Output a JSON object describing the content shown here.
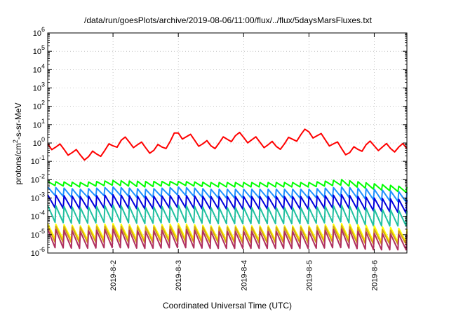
{
  "chart_data": {
    "type": "line",
    "title": "/data/run/goesPlots/archive/2019-08-06/11:00/flux/../flux/5daysMarsFluxes.txt",
    "xlabel": "Coordinated Universal Time (UTC)",
    "ylabel_prefix": "protons/cm",
    "ylabel_sup": "2",
    "ylabel_suffix": "-s-sr-MeV",
    "y_scale": "log",
    "ylim": [
      1e-06,
      1000000.0
    ],
    "y_ticks": [
      {
        "base": "10",
        "exp": "-6",
        "value": 1e-06
      },
      {
        "base": "10",
        "exp": "-5",
        "value": 1e-05
      },
      {
        "base": "10",
        "exp": "-4",
        "value": 0.0001
      },
      {
        "base": "10",
        "exp": "-3",
        "value": 0.001
      },
      {
        "base": "10",
        "exp": "-2",
        "value": 0.01
      },
      {
        "base": "10",
        "exp": "-1",
        "value": 0.1
      },
      {
        "base": "10",
        "exp": "0",
        "value": 1
      },
      {
        "base": "10",
        "exp": "1",
        "value": 10
      },
      {
        "base": "10",
        "exp": "2",
        "value": 100
      },
      {
        "base": "10",
        "exp": "3",
        "value": 1000
      },
      {
        "base": "10",
        "exp": "4",
        "value": 10000
      },
      {
        "base": "10",
        "exp": "5",
        "value": 100000
      },
      {
        "base": "10",
        "exp": "6",
        "value": 1000000
      }
    ],
    "x_range": [
      "2019-08-01T00:00",
      "2019-08-06T12:00"
    ],
    "x_ticks": [
      "2019-8-2",
      "2019-8-3",
      "2019-8-4",
      "2019-8-5",
      "2019-8-6"
    ],
    "x_tick_values": [
      "2019-08-02T00:00",
      "2019-08-03T00:00",
      "2019-08-04T00:00",
      "2019-08-05T00:00",
      "2019-08-06T00:00"
    ],
    "grid": true,
    "legend": "none",
    "series": [
      {
        "color": "#ff0000",
        "x": [
          "2019-08-01T00:00",
          "2019-08-01T03:00",
          "2019-08-01T06:00",
          "2019-08-01T09:00",
          "2019-08-01T12:00",
          "2019-08-01T15:00",
          "2019-08-01T18:00",
          "2019-08-01T21:00",
          "2019-08-02T00:00",
          "2019-08-02T03:00",
          "2019-08-02T06:00",
          "2019-08-02T09:00",
          "2019-08-02T12:00",
          "2019-08-02T15:00",
          "2019-08-02T18:00",
          "2019-08-02T21:00",
          "2019-08-03T00:00",
          "2019-08-03T03:00",
          "2019-08-03T06:00",
          "2019-08-03T09:00",
          "2019-08-03T12:00",
          "2019-08-03T15:00",
          "2019-08-03T18:00",
          "2019-08-03T21:00",
          "2019-08-04T00:00",
          "2019-08-04T03:00",
          "2019-08-04T06:00",
          "2019-08-04T09:00",
          "2019-08-04T12:00",
          "2019-08-04T15:00",
          "2019-08-04T18:00",
          "2019-08-04T21:00",
          "2019-08-05T00:00",
          "2019-08-05T03:00",
          "2019-08-05T06:00",
          "2019-08-05T09:00",
          "2019-08-05T12:00",
          "2019-08-05T15:00",
          "2019-08-05T18:00",
          "2019-08-05T21:00",
          "2019-08-06T00:00",
          "2019-08-06T03:00",
          "2019-08-06T06:00",
          "2019-08-06T09:00",
          "2019-08-06T12:00"
        ],
        "y": [
          0.9,
          0.6,
          0.45,
          0.3,
          0.22,
          0.18,
          0.25,
          0.4,
          0.7,
          1.4,
          1.1,
          0.8,
          0.55,
          0.4,
          0.6,
          1.2,
          3.5,
          2.2,
          1.4,
          0.9,
          0.7,
          1.0,
          1.6,
          2.5,
          2.0,
          1.5,
          1.1,
          0.8,
          0.65,
          0.9,
          1.6,
          2.8,
          4.0,
          2.5,
          1.5,
          0.9,
          0.5,
          0.3,
          0.45,
          0.8,
          0.7,
          0.6,
          0.5,
          0.6,
          0.5
        ]
      },
      {
        "color": "#00ff00",
        "x": [
          "2019-08-01T00:00",
          "2019-08-01T12:00",
          "2019-08-02T00:00",
          "2019-08-02T12:00",
          "2019-08-03T00:00",
          "2019-08-03T12:00",
          "2019-08-04T00:00",
          "2019-08-04T12:00",
          "2019-08-05T00:00",
          "2019-08-05T12:00",
          "2019-08-06T00:00",
          "2019-08-06T12:00"
        ],
        "y_peak": [
          0.008,
          0.007,
          0.009,
          0.008,
          0.008,
          0.007,
          0.007,
          0.007,
          0.007,
          0.01,
          0.006,
          0.004
        ],
        "y_trough": [
          0.005,
          0.004,
          0.005,
          0.004,
          0.005,
          0.004,
          0.004,
          0.004,
          0.004,
          0.005,
          0.003,
          0.002
        ]
      },
      {
        "color": "#1e90ff",
        "x": [
          "2019-08-01T00:00",
          "2019-08-01T12:00",
          "2019-08-02T00:00",
          "2019-08-02T12:00",
          "2019-08-03T00:00",
          "2019-08-03T12:00",
          "2019-08-04T00:00",
          "2019-08-04T12:00",
          "2019-08-05T00:00",
          "2019-08-05T12:00",
          "2019-08-06T00:00",
          "2019-08-06T12:00"
        ],
        "y_peak": [
          0.004,
          0.003,
          0.004,
          0.003,
          0.004,
          0.003,
          0.003,
          0.003,
          0.003,
          0.004,
          0.003,
          0.002
        ],
        "y_trough": [
          0.0015,
          0.001,
          0.0015,
          0.001,
          0.0015,
          0.001,
          0.001,
          0.001,
          0.001,
          0.0012,
          0.0008,
          0.0006
        ]
      },
      {
        "color": "#0000dd",
        "x": [
          "2019-08-01T00:00",
          "2019-08-01T12:00",
          "2019-08-02T00:00",
          "2019-08-02T12:00",
          "2019-08-03T00:00",
          "2019-08-03T12:00",
          "2019-08-04T00:00",
          "2019-08-04T12:00",
          "2019-08-05T00:00",
          "2019-08-05T12:00",
          "2019-08-06T00:00",
          "2019-08-06T12:00"
        ],
        "y_peak": [
          0.0015,
          0.0012,
          0.0015,
          0.0012,
          0.0014,
          0.0012,
          0.0012,
          0.0012,
          0.0012,
          0.0015,
          0.001,
          0.0008
        ],
        "y_trough": [
          0.0003,
          0.00025,
          0.0003,
          0.00025,
          0.0003,
          0.00025,
          0.00025,
          0.00025,
          0.00025,
          0.0003,
          0.0002,
          0.00015
        ]
      },
      {
        "color": "#20c0a0",
        "x": [
          "2019-08-01T00:00",
          "2019-08-01T12:00",
          "2019-08-02T00:00",
          "2019-08-02T12:00",
          "2019-08-03T00:00",
          "2019-08-03T12:00",
          "2019-08-04T00:00",
          "2019-08-04T12:00",
          "2019-08-05T00:00",
          "2019-08-05T12:00",
          "2019-08-06T00:00",
          "2019-08-06T12:00"
        ],
        "y_peak": [
          0.0004,
          0.0003,
          0.0004,
          0.0003,
          0.0004,
          0.0003,
          0.0003,
          0.0003,
          0.0003,
          0.0004,
          0.00025,
          0.0002
        ],
        "y_trough": [
          5e-05,
          4e-05,
          5e-05,
          4e-05,
          5e-05,
          4e-05,
          4e-05,
          4e-05,
          4e-05,
          5e-05,
          3e-05,
          3e-05
        ]
      },
      {
        "color": "#ffff00",
        "x": [
          "2019-08-01T00:00",
          "2019-08-01T12:00",
          "2019-08-02T00:00",
          "2019-08-02T12:00",
          "2019-08-03T00:00",
          "2019-08-03T12:00",
          "2019-08-04T00:00",
          "2019-08-04T12:00",
          "2019-08-05T00:00",
          "2019-08-05T12:00",
          "2019-08-06T00:00",
          "2019-08-06T12:00"
        ],
        "y_peak": [
          4e-05,
          3e-05,
          4e-05,
          3e-05,
          4e-05,
          3e-05,
          3e-05,
          3e-05,
          3e-05,
          4e-05,
          3e-05,
          2e-05
        ],
        "y_trough": [
          6e-06,
          5e-06,
          6e-06,
          5e-06,
          6e-06,
          5e-06,
          5e-06,
          5e-06,
          5e-06,
          6e-06,
          4e-06,
          4e-06
        ]
      },
      {
        "color": "#d4a017",
        "x": [
          "2019-08-01T00:00",
          "2019-08-01T12:00",
          "2019-08-02T00:00",
          "2019-08-02T12:00",
          "2019-08-03T00:00",
          "2019-08-03T12:00",
          "2019-08-04T00:00",
          "2019-08-04T12:00",
          "2019-08-05T00:00",
          "2019-08-05T12:00",
          "2019-08-06T00:00",
          "2019-08-06T12:00"
        ],
        "y_peak": [
          3e-05,
          2.5e-05,
          3e-05,
          2.5e-05,
          3e-05,
          2.5e-05,
          2.5e-05,
          2.5e-05,
          2.5e-05,
          3e-05,
          2e-05,
          1.5e-05
        ],
        "y_trough": [
          4e-06,
          3.5e-06,
          4e-06,
          3.5e-06,
          4e-06,
          3.5e-06,
          3.5e-06,
          3.5e-06,
          3.5e-06,
          4e-06,
          3e-06,
          3e-06
        ]
      },
      {
        "color": "#b03060",
        "x": [
          "2019-08-01T00:00",
          "2019-08-01T12:00",
          "2019-08-02T00:00",
          "2019-08-02T12:00",
          "2019-08-03T00:00",
          "2019-08-03T12:00",
          "2019-08-04T00:00",
          "2019-08-04T12:00",
          "2019-08-05T00:00",
          "2019-08-05T12:00",
          "2019-08-06T00:00",
          "2019-08-06T12:00"
        ],
        "y_peak": [
          2e-05,
          1.5e-05,
          2e-05,
          1.5e-05,
          2e-05,
          1.5e-05,
          1.5e-05,
          1.5e-05,
          1.5e-05,
          2e-05,
          1.2e-05,
          1e-05
        ],
        "y_trough": [
          2e-06,
          1.8e-06,
          2e-06,
          1.8e-06,
          2e-06,
          1.8e-06,
          1.8e-06,
          1.8e-06,
          1.8e-06,
          2e-06,
          1.5e-06,
          1.5e-06
        ]
      }
    ]
  }
}
